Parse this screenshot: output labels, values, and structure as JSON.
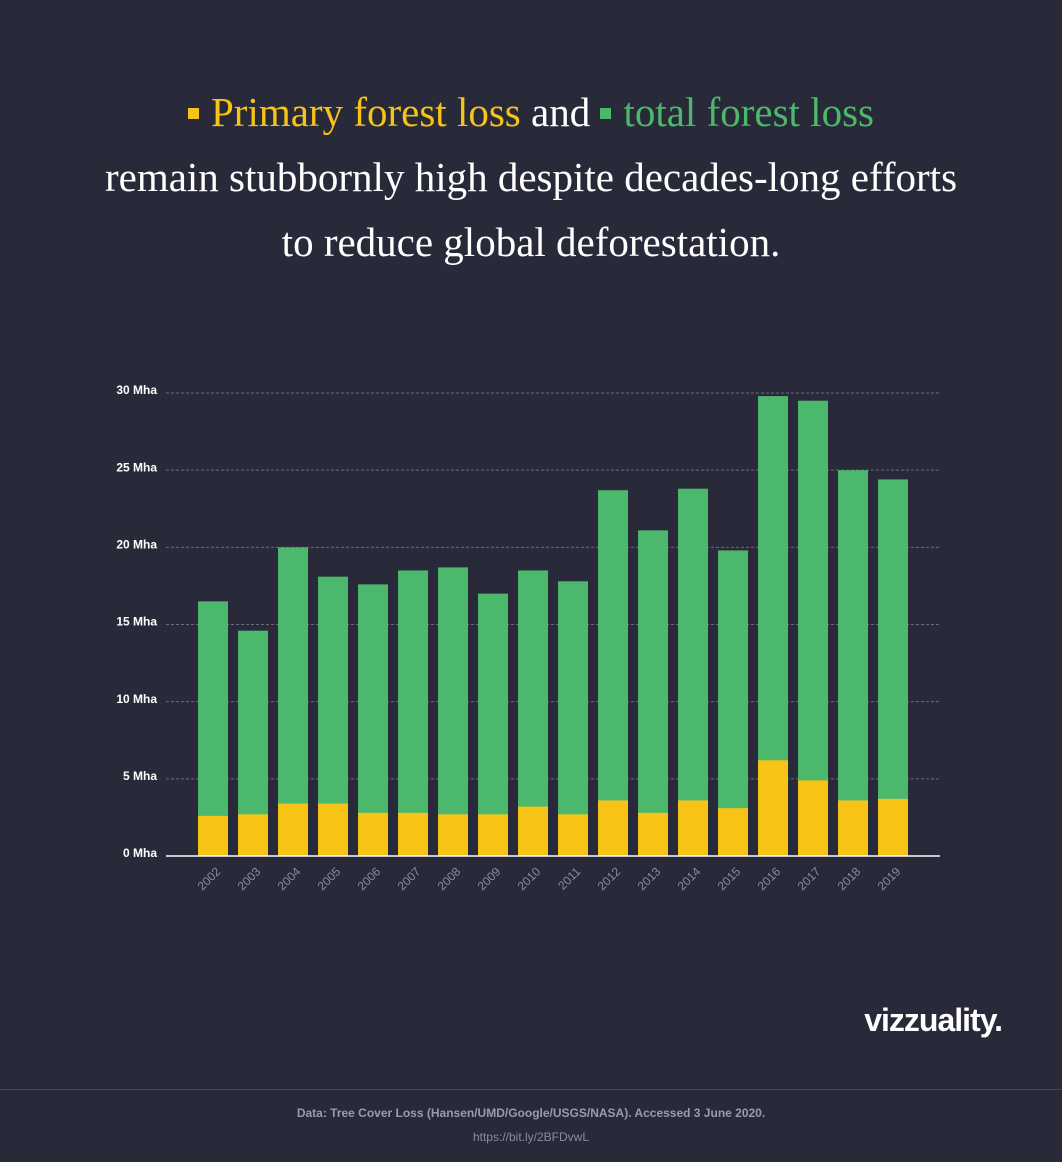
{
  "chart_data": {
    "type": "bar",
    "overlay": true,
    "title": {
      "joiner": "and",
      "rest": "remain stubbornly high despite decades-long efforts to reduce global deforestation."
    },
    "categories": [
      "2002",
      "2003",
      "2004",
      "2005",
      "2006",
      "2007",
      "2008",
      "2009",
      "2010",
      "2011",
      "2012",
      "2013",
      "2014",
      "2015",
      "2016",
      "2017",
      "2018",
      "2019"
    ],
    "series": [
      {
        "name": "total forest loss",
        "color": "#4cb86b",
        "values": [
          16.5,
          14.6,
          20.0,
          18.1,
          17.6,
          18.5,
          18.7,
          17.0,
          18.5,
          17.8,
          23.7,
          21.1,
          23.8,
          19.8,
          29.8,
          29.5,
          25.0,
          24.4
        ]
      },
      {
        "name": "Primary forest loss",
        "color": "#f7c316",
        "values": [
          2.6,
          2.7,
          3.4,
          3.4,
          2.8,
          2.8,
          2.7,
          2.7,
          3.2,
          2.7,
          3.6,
          2.8,
          3.6,
          3.1,
          6.2,
          4.9,
          3.6,
          3.7
        ]
      }
    ],
    "ylim": [
      0,
      30
    ],
    "yticks": [
      {
        "value": 0,
        "label": "0 Mha"
      },
      {
        "value": 5,
        "label": "5 Mha"
      },
      {
        "value": 10,
        "label": "10 Mha"
      },
      {
        "value": 15,
        "label": "15 Mha"
      },
      {
        "value": 20,
        "label": "20 Mha"
      },
      {
        "value": 25,
        "label": "25 Mha"
      },
      {
        "value": 30,
        "label": "30 Mha"
      }
    ],
    "grid": true
  },
  "footer": {
    "logo": "vizzuality.",
    "source": "Data: Tree Cover Loss (Hansen/UMD/Google/USGS/NASA). Accessed 3 June 2020.",
    "url": "https://bit.ly/2BFDvwL"
  }
}
